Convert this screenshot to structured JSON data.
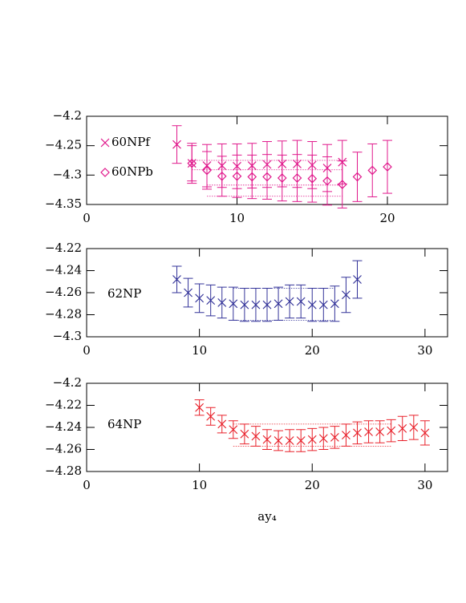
{
  "chart_data": [
    {
      "type": "scatter",
      "xlim": [
        0,
        24
      ],
      "xticks": [
        0,
        10,
        20
      ],
      "ylim": [
        -4.35,
        -4.2
      ],
      "yticks": [
        {
          "value": -4.35,
          "label": "−4.35"
        },
        {
          "value": -4.3,
          "label": "−4.3"
        },
        {
          "value": -4.25,
          "label": "−4.25"
        },
        {
          "value": -4.2,
          "label": "−4.2"
        }
      ],
      "series": [
        {
          "name": "60NPf",
          "color": "#e0198c",
          "marker": "x",
          "x": [
            6,
            7,
            8,
            9,
            10,
            11,
            12,
            13,
            14,
            15,
            16,
            17
          ],
          "values": [
            -4.248,
            -4.28,
            -4.284,
            -4.284,
            -4.285,
            -4.284,
            -4.282,
            -4.281,
            -4.281,
            -4.283,
            -4.288,
            -4.278
          ],
          "errors": [
            0.032,
            0.034,
            0.036,
            0.037,
            0.038,
            0.038,
            0.039,
            0.039,
            0.04,
            0.04,
            0.04,
            0.037
          ],
          "fit": {
            "x": [
              7,
              17
            ],
            "y": [
              -4.291,
              -4.275
            ]
          }
        },
        {
          "name": "60NPb",
          "color": "#e0198c",
          "marker": "diamond",
          "x": [
            7,
            8,
            9,
            10,
            11,
            12,
            13,
            14,
            15,
            16,
            17,
            18,
            19,
            20
          ],
          "values": [
            -4.28,
            -4.292,
            -4.302,
            -4.302,
            -4.303,
            -4.303,
            -4.305,
            -4.305,
            -4.306,
            -4.31,
            -4.316,
            -4.303,
            -4.292,
            -4.286
          ],
          "errors": [
            0.03,
            0.032,
            0.034,
            0.036,
            0.037,
            0.038,
            0.039,
            0.04,
            0.04,
            0.041,
            0.04,
            0.042,
            0.045,
            0.045
          ],
          "fit": {
            "x": [
              8,
              17
            ],
            "y": [
              -4.336,
              -4.317
            ]
          }
        }
      ]
    },
    {
      "type": "scatter",
      "xlim": [
        0,
        32
      ],
      "xticks": [
        0,
        10,
        20,
        30
      ],
      "ylim": [
        -4.3,
        -4.22
      ],
      "yticks": [
        {
          "value": -4.3,
          "label": "−4.3"
        },
        {
          "value": -4.28,
          "label": "−4.28"
        },
        {
          "value": -4.26,
          "label": "−4.26"
        },
        {
          "value": -4.24,
          "label": "−4.24"
        },
        {
          "value": -4.22,
          "label": "−4.22"
        }
      ],
      "series": [
        {
          "name": "62NP",
          "color": "#333399",
          "marker": "x",
          "x": [
            8,
            9,
            10,
            11,
            12,
            13,
            14,
            15,
            16,
            17,
            18,
            19,
            20,
            21,
            22,
            23,
            24
          ],
          "values": [
            -4.248,
            -4.26,
            -4.265,
            -4.267,
            -4.269,
            -4.27,
            -4.271,
            -4.271,
            -4.271,
            -4.27,
            -4.268,
            -4.268,
            -4.271,
            -4.271,
            -4.27,
            -4.262,
            -4.248
          ],
          "errors": [
            0.012,
            0.013,
            0.013,
            0.014,
            0.014,
            0.015,
            0.015,
            0.015,
            0.015,
            0.015,
            0.015,
            0.015,
            0.015,
            0.015,
            0.016,
            0.016,
            0.017
          ],
          "fit": {
            "x": [
              13,
              22
            ],
            "y": [
              -4.285,
              -4.256
            ]
          }
        }
      ]
    },
    {
      "type": "scatter",
      "xlim": [
        0,
        32
      ],
      "xticks": [
        0,
        10,
        20,
        30
      ],
      "ylim": [
        -4.28,
        -4.2
      ],
      "yticks": [
        {
          "value": -4.28,
          "label": "−4.28"
        },
        {
          "value": -4.26,
          "label": "−4.26"
        },
        {
          "value": -4.24,
          "label": "−4.24"
        },
        {
          "value": -4.22,
          "label": "−4.22"
        },
        {
          "value": -4.2,
          "label": "−4.2"
        }
      ],
      "x_label": "ay₄",
      "series": [
        {
          "name": "64NP",
          "color": "#e8202a",
          "marker": "x",
          "x": [
            10,
            11,
            12,
            13,
            14,
            15,
            16,
            17,
            18,
            19,
            20,
            21,
            22,
            23,
            24,
            25,
            26,
            27,
            28,
            29,
            30
          ],
          "values": [
            -4.222,
            -4.23,
            -4.237,
            -4.242,
            -4.246,
            -4.248,
            -4.251,
            -4.252,
            -4.252,
            -4.252,
            -4.251,
            -4.25,
            -4.249,
            -4.247,
            -4.245,
            -4.244,
            -4.244,
            -4.243,
            -4.241,
            -4.24,
            -4.245
          ],
          "errors": [
            0.007,
            0.008,
            0.008,
            0.008,
            0.009,
            0.009,
            0.009,
            0.009,
            0.01,
            0.01,
            0.01,
            0.01,
            0.01,
            0.01,
            0.01,
            0.01,
            0.01,
            0.01,
            0.011,
            0.011,
            0.011
          ],
          "fit": {
            "x": [
              13,
              27
            ],
            "y": [
              -4.257,
              -4.237
            ]
          }
        }
      ]
    }
  ]
}
